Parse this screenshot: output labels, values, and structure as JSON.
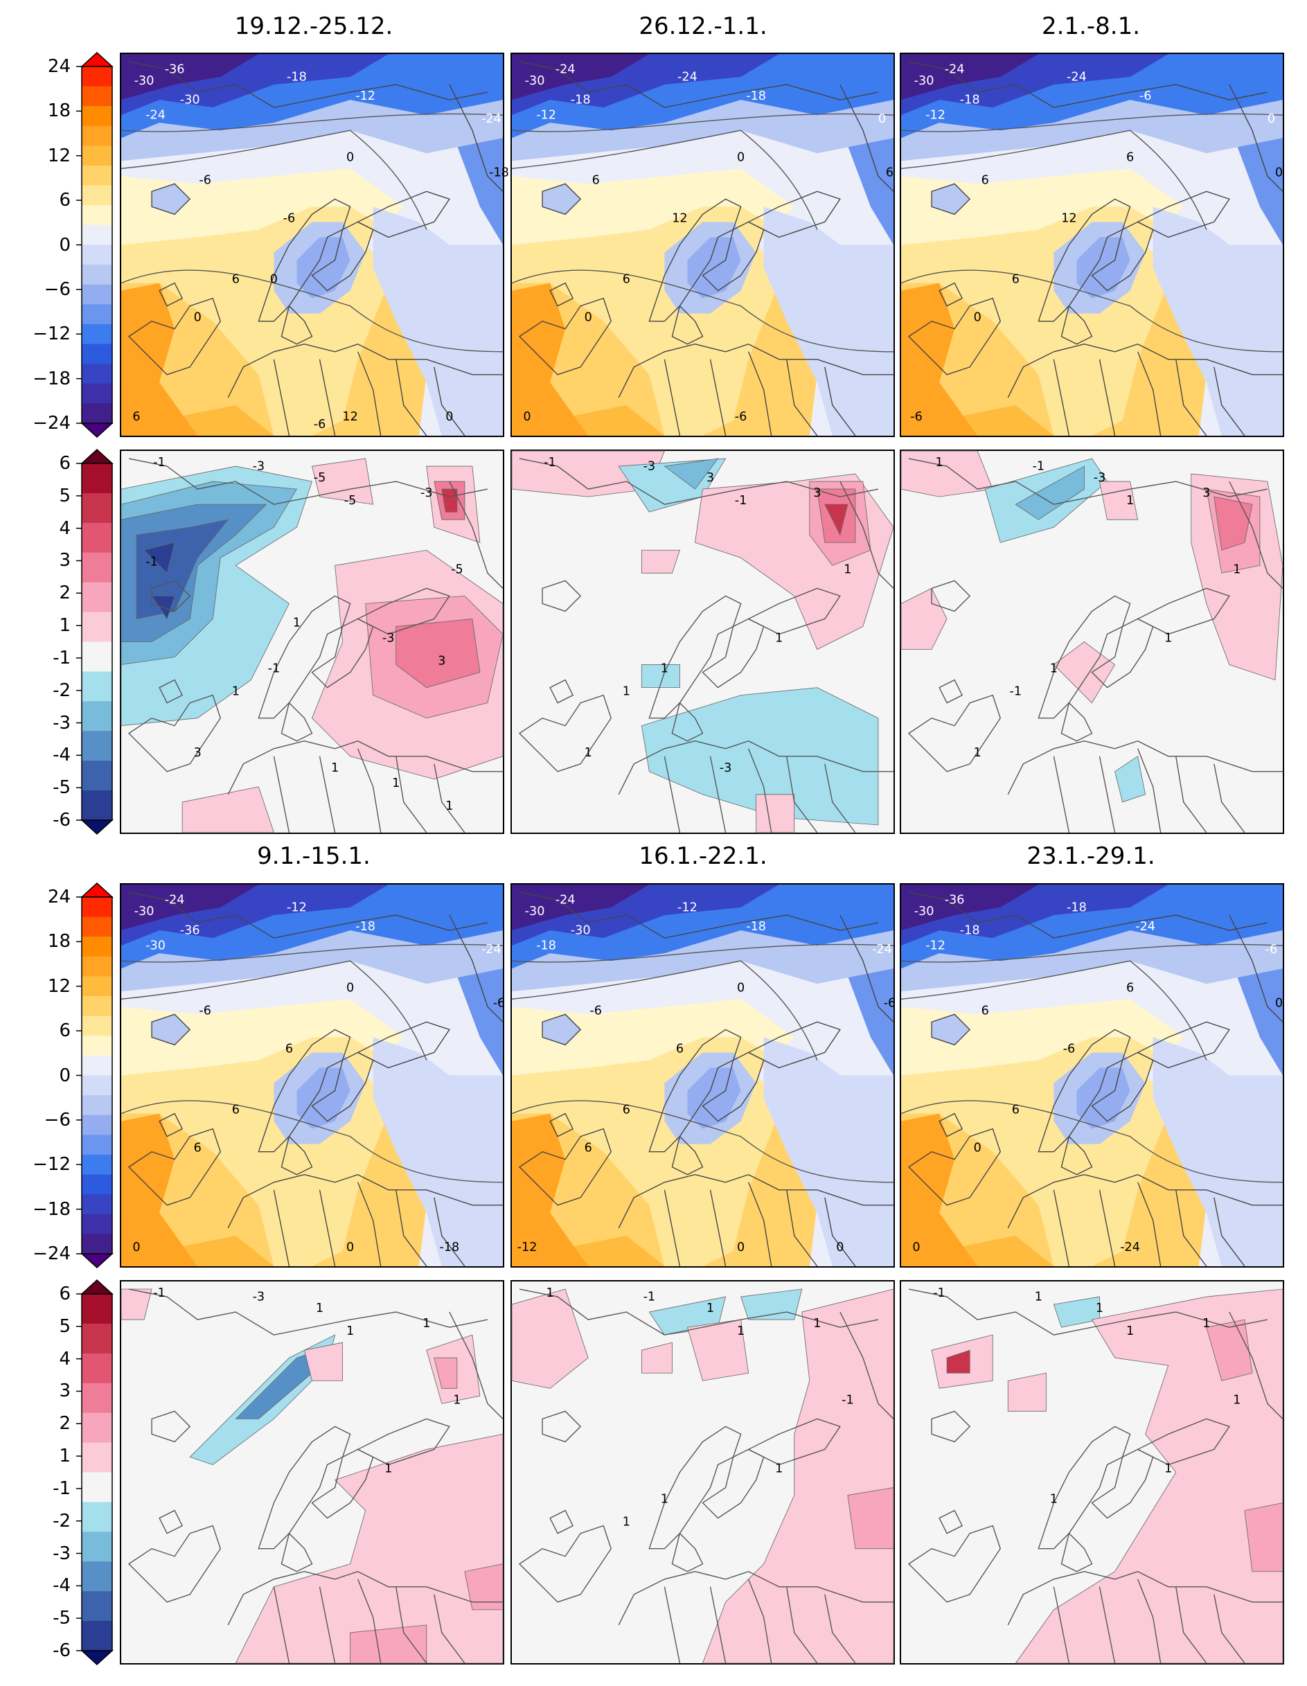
{
  "periods": [
    "19.12.-25.12.",
    "26.12.-1.1.",
    "2.1.-8.1.",
    "9.1.-15.1.",
    "16.1.-22.1.",
    "23.1.-29.1."
  ],
  "colorbars": {
    "temperature": {
      "ticks": [
        "24",
        "18",
        "12",
        "6",
        "0",
        "−6",
        "−12",
        "−18",
        "−24"
      ],
      "colors": [
        "#ff2a00",
        "#ff5a00",
        "#ff8c00",
        "#ffa423",
        "#ffbb3e",
        "#ffd36a",
        "#ffe79a",
        "#fff6cc",
        "#eceefa",
        "#d2dbf7",
        "#b7c8f3",
        "#93adf0",
        "#6b95ee",
        "#3d7cef",
        "#2d5be0",
        "#3745c4",
        "#3e30a8",
        "#42208c"
      ],
      "extend_low": "#4b0082",
      "extend_high": "#ff0000"
    },
    "anomaly": {
      "ticks": [
        "6",
        "5",
        "4",
        "3",
        "2",
        "1",
        "-1",
        "-2",
        "-3",
        "-4",
        "-5",
        "-6"
      ],
      "colors": [
        "#a50f2a",
        "#c7344b",
        "#e35672",
        "#ef7c98",
        "#f7a6bd",
        "#fbcbd9",
        "#f5f5f5",
        "#a5dfee",
        "#78bbdb",
        "#5790c6",
        "#3e63ad",
        "#2a3e93"
      ],
      "extend_low": "#08106b",
      "extend_high": "#67001f"
    }
  },
  "temperature_maps": [
    {
      "labels": [
        "-30",
        "-36",
        "-30",
        "-24",
        "-18",
        "-12",
        "-24",
        "-18",
        "0",
        "-6",
        "6",
        "-6",
        "0",
        "6",
        "12",
        "0",
        "0",
        "-6"
      ]
    },
    {
      "labels": [
        "-30",
        "-24",
        "-18",
        "-12",
        "-24",
        "-18",
        "0",
        "6",
        "0",
        "6",
        "6",
        "12",
        "0",
        "0",
        "-6"
      ]
    },
    {
      "labels": [
        "-30",
        "-24",
        "-18",
        "-12",
        "-24",
        "-6",
        "0",
        "0",
        "6",
        "6",
        "6",
        "12",
        "0",
        "-6"
      ]
    },
    {
      "labels": [
        "-30",
        "-24",
        "-36",
        "-30",
        "-12",
        "-18",
        "-24",
        "-6",
        "0",
        "-6",
        "6",
        "6",
        "6",
        "0",
        "0",
        "-18"
      ]
    },
    {
      "labels": [
        "-30",
        "-24",
        "-30",
        "-18",
        "-12",
        "-18",
        "-24",
        "-6",
        "0",
        "-6",
        "6",
        "6",
        "6",
        "-12",
        "0",
        "0"
      ]
    },
    {
      "labels": [
        "-30",
        "-36",
        "-18",
        "-12",
        "-18",
        "-24",
        "-6",
        "0",
        "6",
        "6",
        "6",
        "-6",
        "0",
        "0",
        "-24"
      ]
    }
  ],
  "anomaly_maps": [
    {
      "labels": [
        "-1",
        "-3",
        "-5",
        "-3",
        "-5",
        "-3",
        "-5",
        "-1",
        "1",
        "3",
        "1",
        "3",
        "1",
        "-1",
        "1",
        "1"
      ]
    },
    {
      "labels": [
        "-1",
        "-3",
        "3",
        "3",
        "1",
        "1",
        "-1",
        "1",
        "1",
        "1",
        "-3"
      ]
    },
    {
      "labels": [
        "1",
        "-1",
        "-3",
        "3",
        "1",
        "1",
        "1",
        "1",
        "-1",
        "1"
      ]
    },
    {
      "labels": [
        "-1",
        "-3",
        "1",
        "1",
        "1",
        "1",
        "1"
      ]
    },
    {
      "labels": [
        "1",
        "-1",
        "1",
        "1",
        "-1",
        "1",
        "1",
        "1",
        "1"
      ]
    },
    {
      "labels": [
        "-1",
        "1",
        "1",
        "1",
        "1",
        "1",
        "1",
        "1"
      ]
    }
  ]
}
